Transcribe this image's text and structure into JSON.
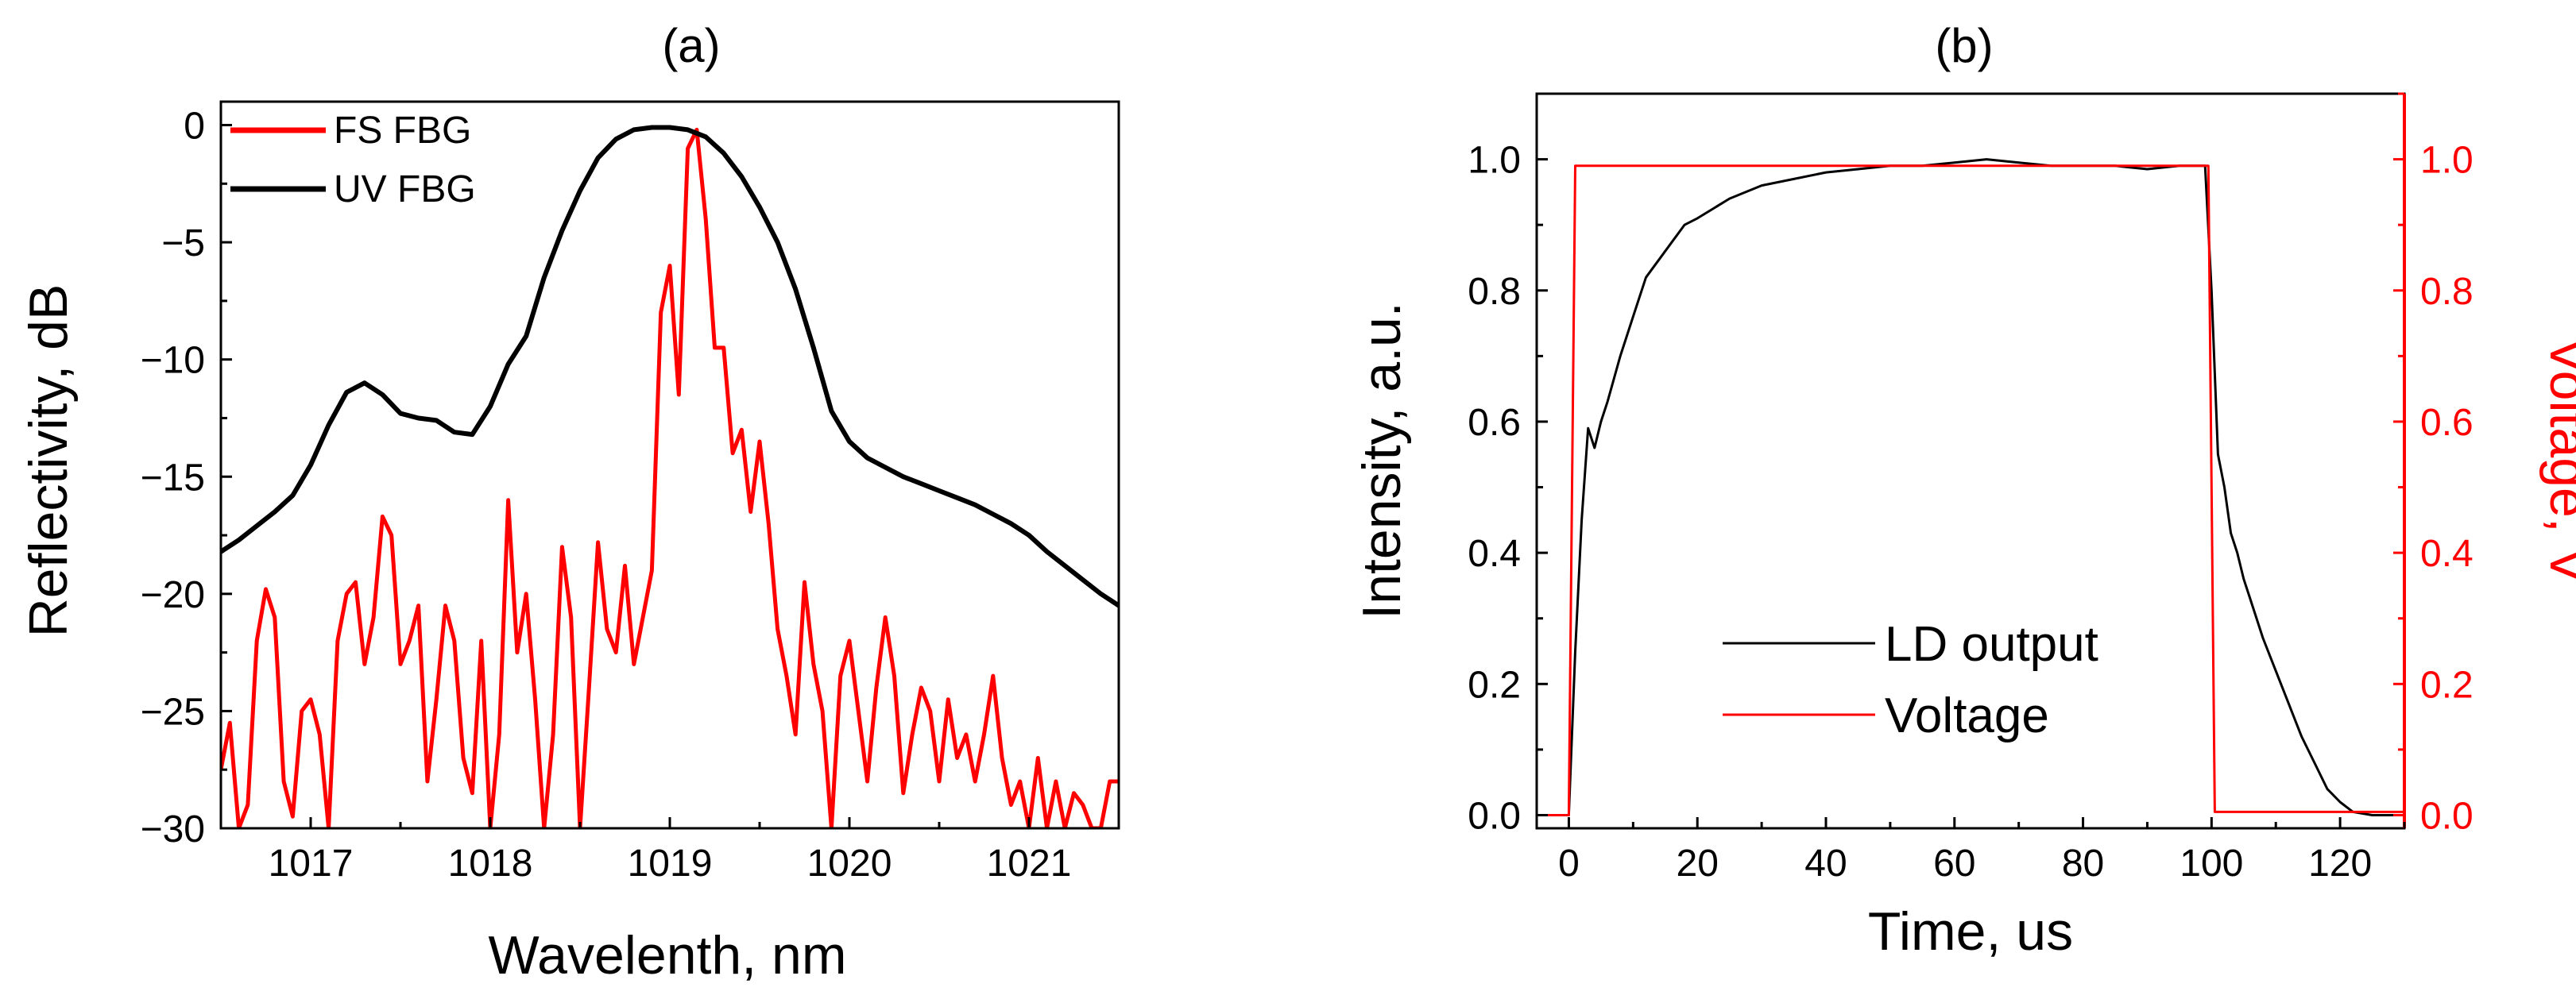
{
  "chart_data": [
    {
      "panel_label": "(a)",
      "type": "line",
      "title": "",
      "xlabel": "Wavelenth, nm",
      "ylabel": "Reflectivity, dB",
      "xlim": [
        1016.5,
        1021.5
      ],
      "ylim": [
        -30,
        1
      ],
      "xticks": [
        1017,
        1018,
        1019,
        1020,
        1021
      ],
      "xtick_labels": [
        "1017",
        "1018",
        "1019",
        "1020",
        "1021"
      ],
      "yticks": [
        0,
        -5,
        -10,
        -15,
        -20,
        -25,
        -30
      ],
      "ytick_labels": [
        "0",
        "−5",
        "−10",
        "−15",
        "−20",
        "−25",
        "−30"
      ],
      "legend_position": "top-left",
      "series": [
        {
          "name": "FS FBG",
          "color": "#ff0000",
          "x": [
            1016.5,
            1016.55,
            1016.6,
            1016.65,
            1016.7,
            1016.75,
            1016.8,
            1016.85,
            1016.9,
            1016.95,
            1017.0,
            1017.05,
            1017.1,
            1017.15,
            1017.2,
            1017.25,
            1017.3,
            1017.35,
            1017.4,
            1017.45,
            1017.5,
            1017.55,
            1017.6,
            1017.65,
            1017.7,
            1017.75,
            1017.8,
            1017.85,
            1017.9,
            1017.95,
            1018.0,
            1018.05,
            1018.1,
            1018.15,
            1018.2,
            1018.25,
            1018.3,
            1018.35,
            1018.4,
            1018.45,
            1018.5,
            1018.55,
            1018.6,
            1018.65,
            1018.7,
            1018.75,
            1018.8,
            1018.85,
            1018.9,
            1018.95,
            1019.0,
            1019.05,
            1019.1,
            1019.15,
            1019.2,
            1019.25,
            1019.3,
            1019.35,
            1019.4,
            1019.45,
            1019.5,
            1019.55,
            1019.6,
            1019.65,
            1019.7,
            1019.75,
            1019.8,
            1019.85,
            1019.9,
            1019.95,
            1020.0,
            1020.05,
            1020.1,
            1020.15,
            1020.2,
            1020.25,
            1020.3,
            1020.35,
            1020.4,
            1020.45,
            1020.5,
            1020.55,
            1020.6,
            1020.65,
            1020.7,
            1020.75,
            1020.8,
            1020.85,
            1020.9,
            1020.95,
            1021.0,
            1021.05,
            1021.1,
            1021.15,
            1021.2,
            1021.25,
            1021.3,
            1021.35,
            1021.4,
            1021.45,
            1021.5
          ],
          "values": [
            -27.5,
            -25.5,
            -30,
            -29,
            -22,
            -19.8,
            -21,
            -28,
            -29.5,
            -25,
            -24.5,
            -26,
            -30,
            -22,
            -20,
            -19.5,
            -23,
            -21,
            -16.7,
            -17.5,
            -23,
            -22,
            -20.5,
            -28,
            -24.5,
            -20.5,
            -22,
            -27,
            -28.5,
            -22,
            -30,
            -26,
            -16,
            -22.5,
            -20,
            -24.5,
            -30,
            -26,
            -18,
            -21,
            -30,
            -24,
            -17.8,
            -21.5,
            -22.5,
            -18.8,
            -23,
            -21,
            -19,
            -8,
            -6,
            -11.5,
            -1,
            -0.2,
            -4,
            -9.5,
            -9.5,
            -14,
            -13,
            -16.5,
            -13.5,
            -17,
            -21.5,
            -23.5,
            -26,
            -19.5,
            -23,
            -25,
            -30,
            -23.5,
            -22,
            -25,
            -28,
            -24,
            -21,
            -23.5,
            -28.5,
            -26,
            -24,
            -25,
            -28,
            -24.5,
            -27,
            -26,
            -28,
            -26,
            -23.5,
            -27,
            -29,
            -28,
            -30,
            -27,
            -30,
            -28,
            -30,
            -28.5,
            -29,
            -30,
            -30,
            -28,
            -28
          ]
        },
        {
          "name": "UV FBG",
          "color": "#000000",
          "x": [
            1016.5,
            1016.6,
            1016.7,
            1016.8,
            1016.9,
            1017.0,
            1017.1,
            1017.2,
            1017.3,
            1017.4,
            1017.5,
            1017.6,
            1017.7,
            1017.8,
            1017.9,
            1018.0,
            1018.1,
            1018.2,
            1018.3,
            1018.4,
            1018.5,
            1018.6,
            1018.7,
            1018.8,
            1018.9,
            1019.0,
            1019.1,
            1019.2,
            1019.3,
            1019.4,
            1019.5,
            1019.6,
            1019.7,
            1019.8,
            1019.9,
            1020.0,
            1020.1,
            1020.2,
            1020.3,
            1020.4,
            1020.5,
            1020.6,
            1020.7,
            1020.8,
            1020.9,
            1021.0,
            1021.1,
            1021.2,
            1021.3,
            1021.4,
            1021.5
          ],
          "values": [
            -18.2,
            -17.7,
            -17.1,
            -16.5,
            -15.8,
            -14.5,
            -12.8,
            -11.4,
            -11.0,
            -11.5,
            -12.3,
            -12.5,
            -12.6,
            -13.1,
            -13.2,
            -12.0,
            -10.2,
            -9.0,
            -6.5,
            -4.5,
            -2.8,
            -1.4,
            -0.6,
            -0.2,
            -0.1,
            -0.1,
            -0.2,
            -0.5,
            -1.2,
            -2.2,
            -3.5,
            -5.0,
            -7.0,
            -9.5,
            -12.2,
            -13.5,
            -14.2,
            -14.6,
            -15.0,
            -15.3,
            -15.6,
            -15.9,
            -16.2,
            -16.6,
            -17.0,
            -17.5,
            -18.2,
            -18.8,
            -19.4,
            -20.0,
            -20.5
          ]
        }
      ]
    },
    {
      "panel_label": "(b)",
      "type": "line",
      "title": "",
      "xlabel": "Time, us",
      "ylabel": "Intensity, a.u.",
      "ylabel_right": "Voltage, V",
      "xlim": [
        -5,
        130
      ],
      "ylim": [
        -0.02,
        1.1
      ],
      "ylim_right": [
        -0.02,
        1.1
      ],
      "xticks": [
        0,
        20,
        40,
        60,
        80,
        100,
        120
      ],
      "xtick_labels": [
        "0",
        "20",
        "40",
        "60",
        "80",
        "100",
        "120"
      ],
      "yticks": [
        0.0,
        0.2,
        0.4,
        0.6,
        0.8,
        1.0
      ],
      "ytick_labels": [
        "0.0",
        "0.2",
        "0.4",
        "0.6",
        "0.8",
        "1.0"
      ],
      "yticks_right": [
        0.0,
        0.2,
        0.4,
        0.6,
        0.8,
        1.0
      ],
      "ytick_labels_right": [
        "0.0",
        "0.2",
        "0.4",
        "0.6",
        "0.8",
        "1.0"
      ],
      "right_axis_color": "#ff0000",
      "legend_position": "bottom-center",
      "series": [
        {
          "name": "LD output",
          "color": "#000000",
          "axis": "left",
          "x": [
            -5,
            0,
            1,
            2,
            3,
            4,
            5,
            6,
            8,
            10,
            12,
            15,
            18,
            20,
            25,
            30,
            35,
            40,
            45,
            50,
            55,
            60,
            65,
            70,
            75,
            80,
            85,
            90,
            95,
            99,
            100,
            101,
            102,
            103,
            104,
            105,
            106,
            108,
            110,
            112,
            114,
            116,
            118,
            120,
            122,
            125,
            130
          ],
          "values": [
            0,
            0,
            0.25,
            0.45,
            0.59,
            0.56,
            0.6,
            0.63,
            0.7,
            0.76,
            0.82,
            0.86,
            0.9,
            0.91,
            0.94,
            0.96,
            0.97,
            0.98,
            0.985,
            0.99,
            0.99,
            0.995,
            1.0,
            0.995,
            0.99,
            0.99,
            0.99,
            0.985,
            0.99,
            0.99,
            0.8,
            0.55,
            0.5,
            0.43,
            0.4,
            0.36,
            0.33,
            0.27,
            0.22,
            0.17,
            0.12,
            0.08,
            0.04,
            0.02,
            0.005,
            0,
            0
          ]
        },
        {
          "name": "Voltage",
          "color": "#ff0000",
          "axis": "right",
          "x": [
            -5,
            0,
            1,
            99.5,
            100.5,
            130
          ],
          "values": [
            0,
            0,
            0.99,
            0.99,
            0.005,
            0.005
          ]
        }
      ]
    }
  ]
}
